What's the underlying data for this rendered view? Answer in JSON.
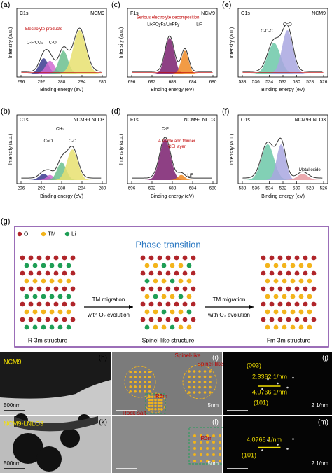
{
  "xps_panels": [
    {
      "label": "(a)",
      "element": "C1s",
      "sample": "NCM9",
      "annotations": [
        "Electrolyte products",
        "C-F/CO₃",
        "C-O"
      ],
      "xticks": [
        "296",
        "292",
        "288",
        "284",
        "280"
      ],
      "xlabel": "Binding energy (eV)",
      "ylabel": "Intensity (a.u.)"
    },
    {
      "label": "(b)",
      "element": "C1s",
      "sample": "NCM9-LNLO3",
      "annotations": [
        "CH₂",
        "C=O",
        "C-C"
      ],
      "xticks": [
        "296",
        "292",
        "288",
        "284",
        "280"
      ],
      "xlabel": "Binding energy (eV)",
      "ylabel": "Intensity (a.u.)"
    },
    {
      "label": "(c)",
      "element": "F1s",
      "sample": "NCM9",
      "annotations": [
        "Serious electrolyte decomposition",
        "LixPOyFz/LixPFy",
        "LiF"
      ],
      "xticks": [
        "696",
        "692",
        "688",
        "684",
        "680"
      ],
      "xlabel": "Binding energy (eV)",
      "ylabel": "Intensity (a.u.)"
    },
    {
      "label": "(d)",
      "element": "F1s",
      "sample": "NCM9-LNLO3",
      "annotations": [
        "C-F",
        "A stable and thinner",
        "CEI layer",
        "LiF"
      ],
      "xticks": [
        "696",
        "692",
        "688",
        "684",
        "680"
      ],
      "xlabel": "Binding energy (eV)",
      "ylabel": "Intensity (a.u.)"
    },
    {
      "label": "(e)",
      "element": "O1s",
      "sample": "NCM9",
      "annotations": [
        "C-O-C",
        "C=O"
      ],
      "xticks": [
        "538",
        "536",
        "534",
        "532",
        "530",
        "528",
        "526"
      ],
      "xlabel": "Binding energy (eV)",
      "ylabel": "Intensity (a.u.)"
    },
    {
      "label": "(f)",
      "element": "O1s",
      "sample": "NCM9-LNLO3",
      "annotations": [
        "Metal oxide"
      ],
      "xticks": [
        "538",
        "536",
        "534",
        "532",
        "530",
        "528",
        "526"
      ],
      "xlabel": "Binding energy (eV)",
      "ylabel": "Intensity (a.u.)"
    }
  ],
  "phase": {
    "label": "(g)",
    "legend": [
      "O",
      "TM",
      "Li"
    ],
    "title": "Phase transition",
    "arrows": [
      {
        "line1": "TM migration",
        "line2": "with O₂ evolution"
      },
      {
        "line1": "TM migration",
        "line2": "with O₂ evolution"
      }
    ],
    "structures": [
      "R-3m structure",
      "Spinel-like structure",
      "Fm-3m structure"
    ]
  },
  "tem_panels": [
    {
      "label": "(h)",
      "texts": [
        "NCM9"
      ],
      "scale": "500nm"
    },
    {
      "label": "(i)",
      "texts": [
        "Spinel-like",
        "Spinel-like",
        "Rock-salt",
        "R3m"
      ],
      "scale": "5nm"
    },
    {
      "label": "(j)",
      "texts": [
        "(003)",
        "2.3362 1/nm",
        "4.0766 1/nm",
        "(101)"
      ],
      "scale": "2 1/nm"
    },
    {
      "label": "(k)",
      "texts": [
        "NCM9-LNLO3"
      ],
      "scale": "500nm"
    },
    {
      "label": "(l)",
      "texts": [
        "R3m"
      ],
      "scale": "5nm"
    },
    {
      "label": "(m)",
      "texts": [
        "4.0766 1/nm",
        "(101)"
      ],
      "scale": "2 1/nm"
    }
  ]
}
